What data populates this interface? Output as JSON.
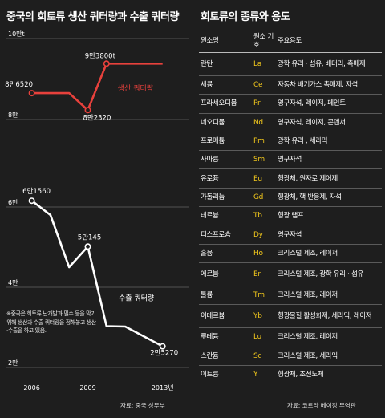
{
  "left": {
    "title": "중국의 희토류 생산 쿼터량과 수출 쿼터량",
    "note": "※중국은 희토류 난개발과 밀수 등을 막기 위해 생산과 수출 쿼터량을 정해놓고 생산·수출을 하고 있음.",
    "source": "자료: 중국 상무부"
  },
  "right": {
    "title": "희토류의 종류와 용도",
    "source": "자료: 코트라 베이징 무역관",
    "table": {
      "headers": [
        "원소명",
        "원소 기호",
        "주요용도"
      ],
      "rows": [
        {
          "name": "란탄",
          "symbol": "La",
          "use": "광학 유리 · 섬유, 배터리, 촉매제"
        },
        {
          "name": "세륨",
          "symbol": "Ce",
          "use": "자동차 배기가스 촉매제, 자석"
        },
        {
          "name": "프라세오디뮴",
          "symbol": "Pr",
          "use": "영구자석, 레이저, 페인트"
        },
        {
          "name": "네오디뮴",
          "symbol": "Nd",
          "use": "영구자석, 레이저, 콘덴서"
        },
        {
          "name": "프로메튬",
          "symbol": "Pm",
          "use": "광학 유리 , 세라믹"
        },
        {
          "name": "사마륨",
          "symbol": "Sm",
          "use": "영구자석"
        },
        {
          "name": "유로퓸",
          "symbol": "Eu",
          "use": "형광체, 원자로 제어제"
        },
        {
          "name": "가돌리늄",
          "symbol": "Gd",
          "use": "형광체, 핵 반응제, 자석"
        },
        {
          "name": "테르븀",
          "symbol": "Tb",
          "use": "형광 램프"
        },
        {
          "name": "디스프로슘",
          "symbol": "Dy",
          "use": "영구자석"
        },
        {
          "name": "홀뮴",
          "symbol": "Ho",
          "use": "크리스털 제조, 레이저"
        },
        {
          "name": "에르븀",
          "symbol": "Er",
          "use": "크리스털 제조, 광학 유리 · 섬유"
        },
        {
          "name": "툴륨",
          "symbol": "Tm",
          "use": "크리스털 제조, 레이저"
        },
        {
          "name": "이테르븀",
          "symbol": "Yb",
          "use": "형광물질 활성화제, 세라믹, 레이저"
        },
        {
          "name": "루테튬",
          "symbol": "Lu",
          "use": "크리스털 제조, 레이저"
        },
        {
          "name": "스칸듐",
          "symbol": "Sc",
          "use": "크리스털 제조, 세라믹"
        },
        {
          "name": "이트륨",
          "symbol": "Y",
          "use": "형광체, 초전도체"
        }
      ]
    }
  },
  "colors": {
    "background": "#1e1e1e",
    "production": "#e8413c",
    "export": "#ffffff",
    "symbol": "#f0c61c"
  },
  "chart_data": [
    {
      "type": "line",
      "series": [
        {
          "name": "생산 쿼터량",
          "color": "#e8413c",
          "x": [
            2006,
            2008,
            2009,
            2010,
            2013
          ],
          "values": [
            86520,
            86520,
            82320,
            93800,
            93800
          ],
          "labels": [
            {
              "x": 2006,
              "y": 86520,
              "text": "8만6520"
            },
            {
              "x": 2009,
              "y": 82320,
              "text": "8만2320"
            },
            {
              "x": 2010,
              "y": 93800,
              "text": "9만3800t"
            }
          ]
        }
      ],
      "xlim": [
        2004.3,
        2014.6
      ],
      "ylim": [
        80000,
        100000
      ],
      "yticks": [
        {
          "value": 100000,
          "label": "10만t"
        },
        {
          "value": 80000,
          "label": "8만"
        }
      ]
    },
    {
      "type": "line",
      "x_ticks": [
        2006,
        2009,
        2013
      ],
      "x_tick_labels": [
        "2006",
        "2009",
        "2013년"
      ],
      "series": [
        {
          "name": "수출 쿼터량",
          "color": "#ffffff",
          "x": [
            2006,
            2007,
            2008,
            2009,
            2010,
            2011,
            2013
          ],
          "values": [
            61560,
            58000,
            45000,
            50145,
            30300,
            30200,
            25270
          ],
          "labels": [
            {
              "x": 2006,
              "y": 61560,
              "text": "6만1560"
            },
            {
              "x": 2009,
              "y": 50145,
              "text": "5만145"
            },
            {
              "x": 2013,
              "y": 25270,
              "text": "2만5270"
            }
          ]
        }
      ],
      "xlim": [
        2004.3,
        2014.6
      ],
      "ylim": [
        20000,
        60000
      ],
      "yticks": [
        {
          "value": 60000,
          "label": "6만"
        },
        {
          "value": 40000,
          "label": "4만"
        },
        {
          "value": 20000,
          "label": "2만"
        }
      ]
    }
  ]
}
